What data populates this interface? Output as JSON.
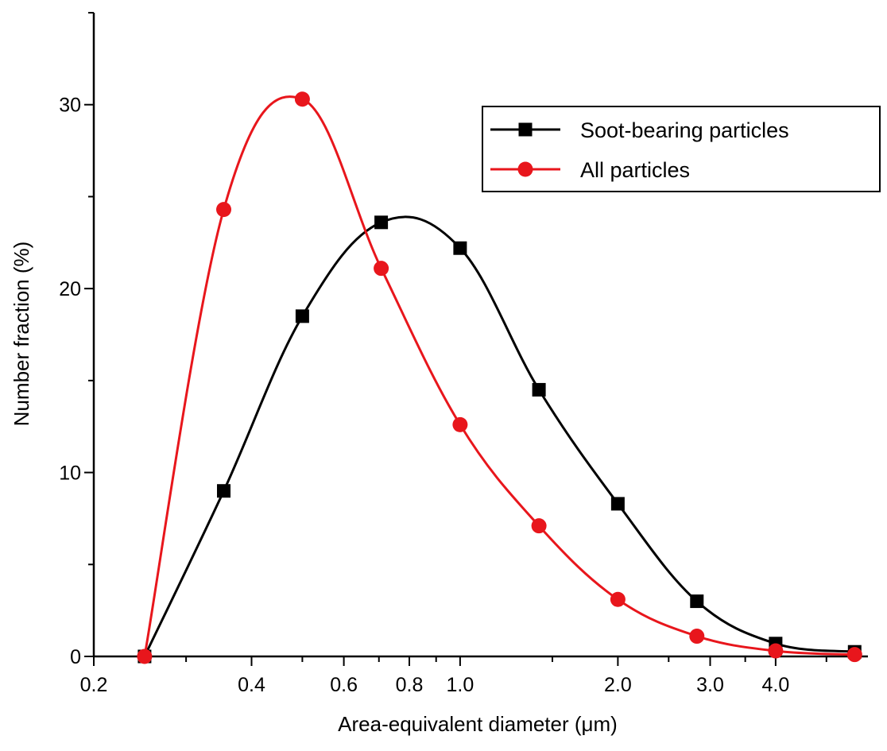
{
  "chart_data": {
    "type": "line",
    "xlabel": "Area-equivalent diameter (μm)",
    "ylabel": "Number fraction (%)",
    "x_scale": "log",
    "xlim": [
      0.2,
      6.0
    ],
    "ylim": [
      0,
      35
    ],
    "x_ticks": [
      {
        "value": 0.2,
        "label": "0.2"
      },
      {
        "value": 0.4,
        "label": "0.4"
      },
      {
        "value": 0.6,
        "label": "0.6"
      },
      {
        "value": 0.8,
        "label": "0.8"
      },
      {
        "value": 1.0,
        "label": "1.0"
      },
      {
        "value": 2.0,
        "label": "2.0"
      },
      {
        "value": 3.0,
        "label": "3.0"
      },
      {
        "value": 4.0,
        "label": "4.0"
      }
    ],
    "y_ticks": [
      {
        "value": 0,
        "label": "0"
      },
      {
        "value": 10,
        "label": "10"
      },
      {
        "value": 20,
        "label": "20"
      },
      {
        "value": 30,
        "label": "30"
      }
    ],
    "grid": false,
    "legend_position": "top-right",
    "series": [
      {
        "name": "Soot-bearing particles",
        "color": "#000000",
        "marker": "square",
        "x": [
          0.25,
          0.354,
          0.5,
          0.707,
          1.0,
          1.414,
          2.0,
          2.83,
          4.0,
          5.66
        ],
        "y": [
          0,
          9.0,
          18.5,
          23.6,
          22.2,
          14.5,
          8.3,
          3.0,
          0.7,
          0.25
        ]
      },
      {
        "name": "All particles",
        "color": "#e8161c",
        "marker": "circle",
        "x": [
          0.25,
          0.354,
          0.5,
          0.707,
          1.0,
          1.414,
          2.0,
          2.83,
          4.0,
          5.66
        ],
        "y": [
          0,
          24.3,
          30.3,
          21.1,
          12.6,
          7.1,
          3.1,
          1.1,
          0.3,
          0.1
        ]
      }
    ]
  }
}
